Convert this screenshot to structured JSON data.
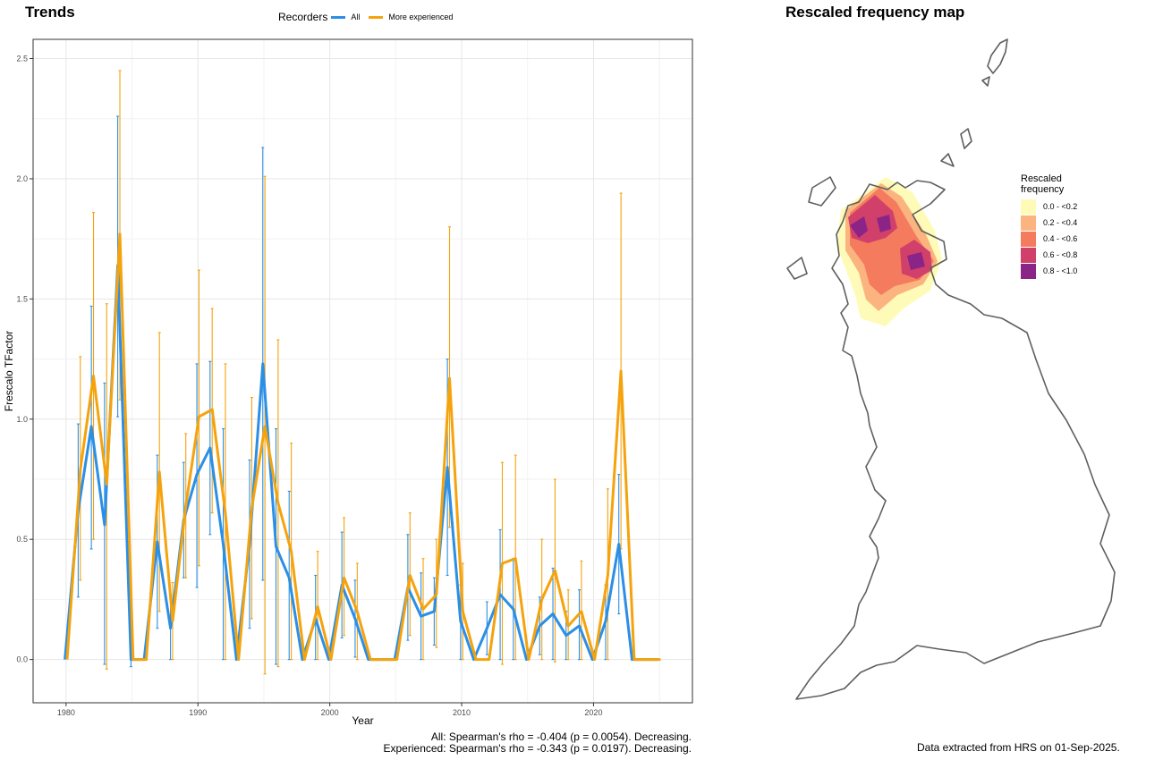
{
  "trends_title": "Trends",
  "map_title": "Rescaled frequency map",
  "legend": {
    "title": "Recorders",
    "items": [
      {
        "label": "All",
        "color": "#2b8fe5"
      },
      {
        "label": "More experienced",
        "color": "#f5a30d"
      }
    ]
  },
  "stats": {
    "all": "All: Spearman's rho = -0.404 (p = 0.0054). Decreasing.",
    "experienced": "Experienced: Spearman's rho = -0.343 (p = 0.0197). Decreasing."
  },
  "source_note": "Data extracted from HRS on 01-Sep-2025.",
  "chart_data": {
    "type": "line",
    "xlabel": "Year",
    "ylabel": "Frescalo TFactor",
    "xlim": [
      1977.5,
      2027.5
    ],
    "ylim": [
      -0.18,
      2.58
    ],
    "xticks": [
      1980,
      1990,
      2000,
      2010,
      2020
    ],
    "yticks": [
      0.0,
      0.5,
      1.0,
      1.5,
      2.0,
      2.5
    ],
    "ytick_labels": [
      "0.0",
      "0.5",
      "1.0",
      "1.5",
      "2.0",
      "2.5"
    ],
    "grid": true,
    "series": [
      {
        "name": "All",
        "color": "#2b8fe5",
        "points": [
          {
            "x": 1980,
            "y": 0.0
          },
          {
            "x": 1981,
            "y": 0.62,
            "lo": 0.26,
            "hi": 0.98
          },
          {
            "x": 1982,
            "y": 0.97,
            "lo": 0.46,
            "hi": 1.47
          },
          {
            "x": 1983,
            "y": 0.56,
            "lo": -0.02,
            "hi": 1.15
          },
          {
            "x": 1984,
            "y": 1.64,
            "lo": 1.01,
            "hi": 2.26
          },
          {
            "x": 1985,
            "y": 0.0,
            "lo": -0.03,
            "hi": 0.03
          },
          {
            "x": 1986,
            "y": 0.0
          },
          {
            "x": 1987,
            "y": 0.49,
            "lo": 0.13,
            "hi": 0.85
          },
          {
            "x": 1988,
            "y": 0.13,
            "lo": 0.0,
            "hi": 0.26
          },
          {
            "x": 1989,
            "y": 0.58,
            "lo": 0.34,
            "hi": 0.82
          },
          {
            "x": 1990,
            "y": 0.77,
            "lo": 0.3,
            "hi": 1.23
          },
          {
            "x": 1991,
            "y": 0.88,
            "lo": 0.52,
            "hi": 1.24
          },
          {
            "x": 1992,
            "y": 0.48,
            "lo": 0.0,
            "hi": 0.96
          },
          {
            "x": 1993,
            "y": 0.0
          },
          {
            "x": 1994,
            "y": 0.48,
            "lo": 0.13,
            "hi": 0.83
          },
          {
            "x": 1995,
            "y": 1.23,
            "lo": 0.33,
            "hi": 2.13
          },
          {
            "x": 1996,
            "y": 0.47,
            "lo": -0.02,
            "hi": 0.96
          },
          {
            "x": 1997,
            "y": 0.34,
            "lo": 0.0,
            "hi": 0.7
          },
          {
            "x": 1998,
            "y": 0.0
          },
          {
            "x": 1999,
            "y": 0.17,
            "lo": 0.0,
            "hi": 0.35
          },
          {
            "x": 2000,
            "y": 0.0
          },
          {
            "x": 2001,
            "y": 0.31,
            "lo": 0.09,
            "hi": 0.53
          },
          {
            "x": 2002,
            "y": 0.17,
            "lo": 0.01,
            "hi": 0.33
          },
          {
            "x": 2003,
            "y": 0.0
          },
          {
            "x": 2004,
            "y": 0.0
          },
          {
            "x": 2005,
            "y": 0.0
          },
          {
            "x": 2006,
            "y": 0.3,
            "lo": 0.08,
            "hi": 0.52
          },
          {
            "x": 2007,
            "y": 0.18,
            "lo": 0.0,
            "hi": 0.36
          },
          {
            "x": 2008,
            "y": 0.2,
            "lo": 0.06,
            "hi": 0.34
          },
          {
            "x": 2009,
            "y": 0.8,
            "lo": 0.35,
            "hi": 1.25
          },
          {
            "x": 2010,
            "y": 0.16,
            "lo": 0.0,
            "hi": 0.31
          },
          {
            "x": 2011,
            "y": 0.0
          },
          {
            "x": 2012,
            "y": 0.13,
            "lo": 0.02,
            "hi": 0.24
          },
          {
            "x": 2013,
            "y": 0.27,
            "lo": 0.0,
            "hi": 0.54
          },
          {
            "x": 2014,
            "y": 0.21,
            "lo": 0.0,
            "hi": 0.42
          },
          {
            "x": 2015,
            "y": 0.0
          },
          {
            "x": 2016,
            "y": 0.14,
            "lo": 0.02,
            "hi": 0.26
          },
          {
            "x": 2017,
            "y": 0.19,
            "lo": 0.0,
            "hi": 0.38
          },
          {
            "x": 2018,
            "y": 0.1,
            "lo": 0.0,
            "hi": 0.2
          },
          {
            "x": 2019,
            "y": 0.14,
            "lo": 0.0,
            "hi": 0.29
          },
          {
            "x": 2020,
            "y": 0.0
          },
          {
            "x": 2021,
            "y": 0.16,
            "lo": 0.0,
            "hi": 0.31
          },
          {
            "x": 2022,
            "y": 0.48,
            "lo": 0.19,
            "hi": 0.77
          },
          {
            "x": 2023,
            "y": 0.0
          },
          {
            "x": 2024,
            "y": 0.0
          },
          {
            "x": 2025,
            "y": 0.0
          }
        ]
      },
      {
        "name": "More experienced",
        "color": "#f5a30d",
        "points": [
          {
            "x": 1980,
            "y": 0.0
          },
          {
            "x": 1981,
            "y": 0.79,
            "lo": 0.33,
            "hi": 1.26
          },
          {
            "x": 1982,
            "y": 1.18,
            "lo": 0.5,
            "hi": 1.86
          },
          {
            "x": 1983,
            "y": 0.73,
            "lo": -0.04,
            "hi": 1.48
          },
          {
            "x": 1984,
            "y": 1.77,
            "lo": 1.08,
            "hi": 2.45
          },
          {
            "x": 1985,
            "y": 0.0
          },
          {
            "x": 1986,
            "y": 0.0
          },
          {
            "x": 1987,
            "y": 0.78,
            "lo": 0.2,
            "hi": 1.36
          },
          {
            "x": 1988,
            "y": 0.16,
            "lo": 0.0,
            "hi": 0.32
          },
          {
            "x": 1989,
            "y": 0.64,
            "lo": 0.34,
            "hi": 0.94
          },
          {
            "x": 1990,
            "y": 1.01,
            "lo": 0.39,
            "hi": 1.62
          },
          {
            "x": 1991,
            "y": 1.04,
            "lo": 0.61,
            "hi": 1.46
          },
          {
            "x": 1992,
            "y": 0.61,
            "lo": 0.0,
            "hi": 1.23
          },
          {
            "x": 1993,
            "y": 0.0
          },
          {
            "x": 1994,
            "y": 0.63,
            "lo": 0.17,
            "hi": 1.09
          },
          {
            "x": 1995,
            "y": 0.97,
            "lo": -0.06,
            "hi": 2.01
          },
          {
            "x": 1996,
            "y": 0.65,
            "lo": -0.03,
            "hi": 1.33
          },
          {
            "x": 1997,
            "y": 0.45,
            "lo": 0.0,
            "hi": 0.9
          },
          {
            "x": 1998,
            "y": 0.0
          },
          {
            "x": 1999,
            "y": 0.22,
            "lo": 0.0,
            "hi": 0.45
          },
          {
            "x": 2000,
            "y": 0.0
          },
          {
            "x": 2001,
            "y": 0.34,
            "lo": 0.1,
            "hi": 0.59
          },
          {
            "x": 2002,
            "y": 0.2,
            "lo": 0.0,
            "hi": 0.4
          },
          {
            "x": 2003,
            "y": 0.0
          },
          {
            "x": 2004,
            "y": 0.0
          },
          {
            "x": 2005,
            "y": 0.0
          },
          {
            "x": 2006,
            "y": 0.35,
            "lo": 0.1,
            "hi": 0.61
          },
          {
            "x": 2007,
            "y": 0.21,
            "lo": 0.0,
            "hi": 0.42
          },
          {
            "x": 2008,
            "y": 0.27,
            "lo": 0.05,
            "hi": 0.5
          },
          {
            "x": 2009,
            "y": 1.17,
            "lo": 0.55,
            "hi": 1.8
          },
          {
            "x": 2010,
            "y": 0.2,
            "lo": 0.0,
            "hi": 0.4
          },
          {
            "x": 2011,
            "y": 0.0
          },
          {
            "x": 2012,
            "y": 0.0
          },
          {
            "x": 2013,
            "y": 0.4,
            "lo": -0.02,
            "hi": 0.82
          },
          {
            "x": 2014,
            "y": 0.42,
            "lo": 0.0,
            "hi": 0.85
          },
          {
            "x": 2015,
            "y": 0.0
          },
          {
            "x": 2016,
            "y": 0.25,
            "lo": 0.0,
            "hi": 0.5
          },
          {
            "x": 2017,
            "y": 0.37,
            "lo": -0.01,
            "hi": 0.75
          },
          {
            "x": 2018,
            "y": 0.14,
            "lo": 0.0,
            "hi": 0.29
          },
          {
            "x": 2019,
            "y": 0.2,
            "lo": 0.0,
            "hi": 0.41
          },
          {
            "x": 2020,
            "y": 0.0
          },
          {
            "x": 2021,
            "y": 0.35,
            "lo": 0.0,
            "hi": 0.71
          },
          {
            "x": 2022,
            "y": 1.2,
            "lo": 0.46,
            "hi": 1.94
          },
          {
            "x": 2023,
            "y": 0.0
          },
          {
            "x": 2024,
            "y": 0.0
          },
          {
            "x": 2025,
            "y": 0.0
          }
        ]
      }
    ]
  },
  "map_legend": {
    "title": "Rescaled frequency",
    "bins": [
      {
        "label": "0.0 - <0.2",
        "color": "#fefbb8"
      },
      {
        "label": "0.2 - <0.4",
        "color": "#fbb47f"
      },
      {
        "label": "0.4 - <0.6",
        "color": "#f47b5d"
      },
      {
        "label": "0.6 - <0.8",
        "color": "#d0406b"
      },
      {
        "label": "0.8 - <1.0",
        "color": "#8b2487"
      }
    ]
  }
}
